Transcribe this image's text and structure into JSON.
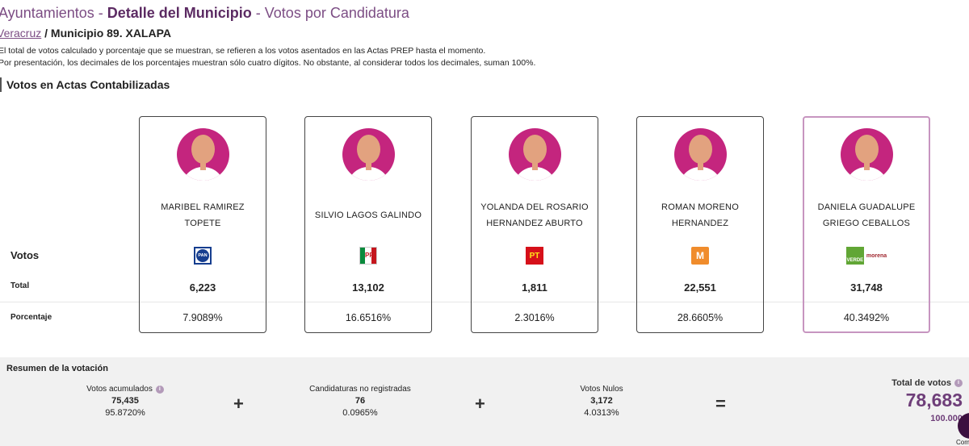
{
  "header": {
    "title_part1": "Ayuntamientos",
    "sep1": " - ",
    "title_part2": "Detalle del Municipio",
    "sep2": " - ",
    "title_part3": "Votos por Candidatura"
  },
  "breadcrumb": {
    "state": "Veracruz",
    "sep": " / ",
    "municipality": "Municipio 89. XALAPA"
  },
  "notes": [
    "El total de votos calculado y porcentaje que se muestran, se refieren a los votos asentados en las Actas PREP hasta el momento.",
    "Por presentación, los decimales de los porcentajes muestran sólo cuatro dígitos. No obstante, al considerar todos los decimales, suman 100%."
  ],
  "section_title": "Votos en Actas Contabilizadas",
  "row_labels": {
    "votos": "Votos",
    "total": "Total",
    "porcentaje": "Porcentaje"
  },
  "candidates": [
    {
      "name_line1": "MARIBEL RAMIREZ",
      "name_line2": "TOPETE",
      "party": "PAN",
      "logo_text": "PAN",
      "total": "6,223",
      "pct": "7.9089%"
    },
    {
      "name_line1": "SILVIO LAGOS GALINDO",
      "name_line2": "",
      "party": "PRI",
      "logo_text": "PRI",
      "total": "13,102",
      "pct": "16.6516%"
    },
    {
      "name_line1": "YOLANDA DEL ROSARIO",
      "name_line2": "HERNANDEZ ABURTO",
      "party": "PT",
      "logo_text": "PT",
      "total": "1,811",
      "pct": "2.3016%"
    },
    {
      "name_line1": "ROMAN MORENO",
      "name_line2": "HERNANDEZ",
      "party": "MC",
      "logo_text": "M",
      "total": "22,551",
      "pct": "28.6605%"
    },
    {
      "name_line1": "DANIELA GUADALUPE",
      "name_line2": "GRIEGO CEBALLOS",
      "party": "PVEM-MORENA",
      "logo_text": "VERDE",
      "logo_text2": "morena",
      "total": "31,748",
      "pct": "40.3492%"
    }
  ],
  "summary": {
    "title": "Resumen de la votación",
    "acumulados": {
      "label": "Votos acumulados",
      "value": "75,435",
      "pct": "95.8720%"
    },
    "no_registradas": {
      "label": "Candidaturas no registradas",
      "value": "76",
      "pct": "0.0965%"
    },
    "nulos": {
      "label": "Votos Nulos",
      "value": "3,172",
      "pct": "4.0313%"
    },
    "plus": "+",
    "equals": "=",
    "info": "i",
    "total": {
      "label": "Total de votos",
      "value": "78,683",
      "pct": "100.000"
    }
  },
  "fab_label": "Com",
  "colors": {
    "accent": "#7c4d84",
    "accent_dark": "#5c2b63",
    "avatar_bg": "#c4257e",
    "winner_border": "#c795c0",
    "summary_bg": "#f1f1f1"
  }
}
